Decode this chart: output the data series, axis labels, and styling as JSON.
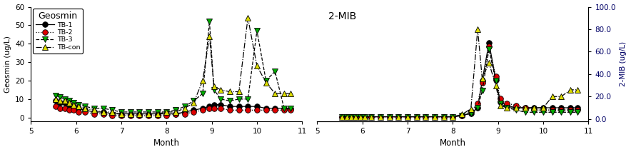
{
  "geosmin": {
    "title": "Geosmin",
    "ylabel_left": "Geosmin (ug/L)",
    "xlabel": "Month",
    "xlim": [
      5,
      11
    ],
    "ylim": [
      -2,
      60
    ],
    "yticks": [
      0,
      10,
      20,
      30,
      40,
      50,
      60
    ],
    "TB1": {
      "x": [
        5.55,
        5.65,
        5.75,
        5.85,
        5.95,
        6.05,
        6.2,
        6.4,
        6.6,
        6.8,
        7.0,
        7.2,
        7.4,
        7.6,
        7.8,
        8.0,
        8.2,
        8.4,
        8.6,
        8.8,
        8.95,
        9.05,
        9.2,
        9.4,
        9.6,
        9.8,
        10.0,
        10.2,
        10.4,
        10.6,
        10.75
      ],
      "y": [
        9,
        8,
        8,
        7,
        6,
        5,
        4,
        3,
        3,
        2,
        2,
        2,
        2,
        2,
        2,
        2,
        2,
        3,
        4,
        5,
        6,
        7,
        7,
        6,
        6,
        6,
        6,
        5,
        5,
        5,
        5
      ]
    },
    "TB2": {
      "x": [
        5.55,
        5.65,
        5.75,
        5.85,
        5.95,
        6.05,
        6.2,
        6.4,
        6.6,
        6.8,
        7.0,
        7.2,
        7.4,
        7.6,
        7.8,
        8.0,
        8.2,
        8.4,
        8.6,
        8.8,
        8.95,
        9.05,
        9.2,
        9.4,
        9.6,
        9.8,
        10.0,
        10.2,
        10.4,
        10.6,
        10.75
      ],
      "y": [
        6,
        5,
        5,
        4,
        4,
        3,
        3,
        2,
        2,
        1,
        1,
        1,
        1,
        1,
        1,
        1,
        2,
        2,
        3,
        4,
        5,
        5,
        5,
        4,
        4,
        4,
        4,
        4,
        4,
        4,
        4
      ]
    },
    "TB3": {
      "x": [
        5.55,
        5.65,
        5.75,
        5.85,
        5.95,
        6.05,
        6.2,
        6.4,
        6.6,
        6.8,
        7.0,
        7.2,
        7.4,
        7.6,
        7.8,
        8.0,
        8.2,
        8.4,
        8.6,
        8.8,
        8.95,
        9.05,
        9.2,
        9.4,
        9.6,
        9.8,
        10.0,
        10.2,
        10.4,
        10.6,
        10.75
      ],
      "y": [
        12,
        11,
        10,
        9,
        8,
        7,
        6,
        5,
        5,
        4,
        3,
        3,
        3,
        3,
        3,
        3,
        4,
        6,
        9,
        13,
        52,
        15,
        10,
        9,
        10,
        10,
        47,
        20,
        25,
        5,
        5
      ]
    },
    "TBcon": {
      "x": [
        5.55,
        5.65,
        5.75,
        5.85,
        5.95,
        6.05,
        6.2,
        6.4,
        6.6,
        6.8,
        7.0,
        7.2,
        7.4,
        7.6,
        7.8,
        8.0,
        8.2,
        8.4,
        8.6,
        8.8,
        8.95,
        9.05,
        9.2,
        9.4,
        9.6,
        9.8,
        10.0,
        10.2,
        10.4,
        10.6,
        10.75
      ],
      "y": [
        10,
        9,
        9,
        8,
        7,
        6,
        5,
        4,
        3,
        3,
        2,
        2,
        2,
        2,
        2,
        3,
        3,
        5,
        8,
        20,
        44,
        17,
        15,
        14,
        14,
        54,
        28,
        19,
        13,
        13,
        13
      ]
    }
  },
  "mib": {
    "title": "2-MIB",
    "ylabel_right": "2-MIB (ug/L)",
    "xlabel": "Month",
    "xlim": [
      5,
      11
    ],
    "ylim": [
      -2,
      100
    ],
    "yticks": [
      0.0,
      20.0,
      40.0,
      60.0,
      80.0,
      100.0
    ],
    "TB1": {
      "x": [
        5.55,
        5.65,
        5.75,
        5.85,
        5.95,
        6.05,
        6.2,
        6.4,
        6.6,
        6.8,
        7.0,
        7.2,
        7.4,
        7.6,
        7.8,
        8.0,
        8.2,
        8.4,
        8.55,
        8.65,
        8.8,
        8.95,
        9.05,
        9.2,
        9.4,
        9.6,
        9.8,
        10.0,
        10.2,
        10.4,
        10.6,
        10.75
      ],
      "y": [
        2,
        2,
        2,
        2,
        2,
        2,
        2,
        2,
        2,
        2,
        2,
        2,
        2,
        2,
        2,
        2,
        3,
        5,
        10,
        34,
        68,
        35,
        15,
        12,
        10,
        10,
        10,
        10,
        10,
        10,
        10,
        10
      ]
    },
    "TB2": {
      "x": [
        5.55,
        5.65,
        5.75,
        5.85,
        5.95,
        6.05,
        6.2,
        6.4,
        6.6,
        6.8,
        7.0,
        7.2,
        7.4,
        7.6,
        7.8,
        8.0,
        8.2,
        8.4,
        8.55,
        8.65,
        8.8,
        8.95,
        9.05,
        9.2,
        9.4,
        9.6,
        9.8,
        10.0,
        10.2,
        10.4,
        10.6,
        10.75
      ],
      "y": [
        2,
        2,
        2,
        2,
        2,
        2,
        2,
        2,
        2,
        2,
        2,
        2,
        2,
        2,
        2,
        2,
        3,
        7,
        14,
        32,
        65,
        38,
        18,
        14,
        12,
        10,
        8,
        8,
        8,
        8,
        8,
        8
      ]
    },
    "TB3": {
      "x": [
        5.55,
        5.65,
        5.75,
        5.85,
        5.95,
        6.05,
        6.2,
        6.4,
        6.6,
        6.8,
        7.0,
        7.2,
        7.4,
        7.6,
        7.8,
        8.0,
        8.2,
        8.4,
        8.55,
        8.65,
        8.8,
        8.95,
        9.05,
        9.2,
        9.4,
        9.6,
        9.8,
        10.0,
        10.2,
        10.4,
        10.6,
        10.75
      ],
      "y": [
        2,
        2,
        2,
        2,
        2,
        2,
        2,
        2,
        2,
        2,
        2,
        2,
        2,
        2,
        2,
        2,
        3,
        5,
        10,
        25,
        62,
        34,
        14,
        10,
        8,
        6,
        6,
        6,
        6,
        6,
        6,
        6
      ]
    },
    "TBcon": {
      "x": [
        5.55,
        5.65,
        5.75,
        5.85,
        5.95,
        6.05,
        6.2,
        6.4,
        6.6,
        6.8,
        7.0,
        7.2,
        7.4,
        7.6,
        7.8,
        8.0,
        8.2,
        8.4,
        8.55,
        8.65,
        8.8,
        8.95,
        9.05,
        9.2,
        9.4,
        9.6,
        9.8,
        10.0,
        10.2,
        10.4,
        10.6,
        10.75
      ],
      "y": [
        2,
        2,
        2,
        2,
        2,
        2,
        2,
        2,
        2,
        2,
        2,
        2,
        2,
        2,
        2,
        2,
        4,
        9,
        80,
        36,
        50,
        30,
        12,
        10,
        10,
        10,
        10,
        10,
        20,
        20,
        26,
        26
      ]
    }
  },
  "series": [
    {
      "key": "TB1",
      "label": "TB-1",
      "color": "#000000",
      "marker": "o",
      "linestyle": "-",
      "linecolor": "#000000"
    },
    {
      "key": "TB2",
      "label": "TB-2",
      "color": "#dd0000",
      "marker": "o",
      "linestyle": ":",
      "linecolor": "#000000"
    },
    {
      "key": "TB3",
      "label": "TB-3",
      "color": "#00aa00",
      "marker": "v",
      "linestyle": "--",
      "linecolor": "#000000"
    },
    {
      "key": "TBcon",
      "label": "TB-con",
      "color": "#dddd00",
      "marker": "^",
      "linestyle": "-.",
      "linecolor": "#000000"
    }
  ],
  "background": "#ffffff"
}
